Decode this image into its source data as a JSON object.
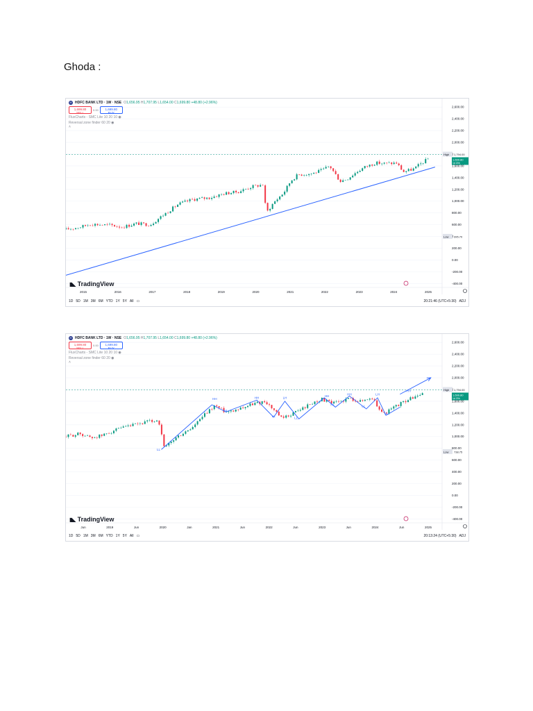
{
  "document": {
    "title": "Ghoda :"
  },
  "chart_data": [
    {
      "type": "candlestick",
      "symbol": "HDFC BANK LTD · 1W · NSE",
      "ohlc": {
        "open": "1,656.95",
        "high": "1,707.95",
        "low": "1,654.00",
        "close": "1,699.80",
        "change": "+48.80 (+2.96%)"
      },
      "trade": {
        "sell": "1,699.80",
        "sell_label": "SELL",
        "spread": "0.00",
        "buy": "1,699.80",
        "buy_label": "BUY"
      },
      "indicators": [
        "FluxCharts - SMC Lite 10 20 10",
        "Reversal zone finder 60 20"
      ],
      "y_axis": {
        "ticks": [
          -400,
          -200,
          0,
          200,
          400,
          600,
          800,
          1000,
          1200,
          1400,
          1600,
          1800,
          2000,
          2200,
          2400,
          2600
        ],
        "tick_labels": [
          "-400.00",
          "-200.00",
          "0.00",
          "200.00",
          "400.00",
          "600.00",
          "800.00",
          "1,000.00",
          "1,200.00",
          "1,400.00",
          "1,600.00",
          "1,800.00",
          "2,000.00",
          "2,200.00",
          "2,400.00",
          "2,600.00"
        ],
        "ylim": [
          -420,
          2650
        ]
      },
      "x_axis": {
        "labels": [
          "2015",
          "2016",
          "2017",
          "2018",
          "2019",
          "2020",
          "2021",
          "2022",
          "2023",
          "2024",
          "2025"
        ],
        "xlim": [
          2014.5,
          2025.2
        ]
      },
      "levels": {
        "high_label": "High",
        "high": "1,794.00",
        "low_label": "Low",
        "low": "395.70",
        "last": "1,699.80",
        "countdown": "1d 20h"
      },
      "series": [
        {
          "x": [
            2014.5,
            2014.9,
            2015.2,
            2015.5,
            2015.8,
            2016.1,
            2016.5,
            2016.9,
            2017.3,
            2017.7,
            2018.1,
            2018.6,
            2019.0,
            2019.4,
            2019.8,
            2020.1,
            2020.2,
            2020.4,
            2020.7,
            2020.9,
            2021.1,
            2021.5,
            2021.8,
            2022.0,
            2022.3,
            2022.5,
            2022.8,
            2023.0,
            2023.3,
            2023.6,
            2023.9,
            2024.1,
            2024.4,
            2024.6,
            2024.8
          ],
          "y": [
            520,
            560,
            610,
            600,
            590,
            560,
            620,
            600,
            780,
            950,
            1030,
            1060,
            1130,
            1160,
            1250,
            1280,
            800,
            970,
            1150,
            1350,
            1450,
            1470,
            1530,
            1600,
            1340,
            1380,
            1510,
            1580,
            1650,
            1640,
            1650,
            1500,
            1550,
            1640,
            1720
          ]
        }
      ],
      "trendline": {
        "from": [
          2014.5,
          -260
        ],
        "to": [
          2025.0,
          1580
        ]
      },
      "interval_buttons": [
        "1D",
        "5D",
        "1M",
        "3M",
        "6M",
        "YTD",
        "1Y",
        "5Y",
        "All"
      ],
      "time": "20:21:46 (UTC+5:30)",
      "adj": "ADJ",
      "brand": "TradingView"
    },
    {
      "type": "candlestick",
      "symbol": "HDFC BANK LTD · 1W · NSE",
      "ohlc": {
        "open": "1,656.95",
        "high": "1,707.95",
        "low": "1,654.00",
        "close": "1,699.80",
        "change": "+48.80 (+2.96%)"
      },
      "trade": {
        "sell": "1,699.80",
        "sell_label": "SELL",
        "spread": "0.00",
        "buy": "1,699.80",
        "buy_label": "BUY"
      },
      "indicators": [
        "FluxCharts - SMC Lite 10 20 10",
        "Reversal zone finder 60 20"
      ],
      "y_axis": {
        "ticks": [
          -400,
          -200,
          0,
          200,
          400,
          600,
          800,
          1000,
          1200,
          1400,
          1600,
          1800,
          2000,
          2200,
          2400,
          2600
        ],
        "tick_labels": [
          "-400.00",
          "-200.00",
          "0.00",
          "200.00",
          "400.00",
          "600.00",
          "800.00",
          "1,000.00",
          "1,200.00",
          "1,400.00",
          "1,600.00",
          "1,800.00",
          "2,000.00",
          "2,200.00",
          "2,400.00",
          "2,600.00"
        ],
        "ylim": [
          -420,
          2650
        ]
      },
      "x_axis": {
        "labels": [
          "Jun",
          "2019",
          "Jun",
          "2020",
          "Jan",
          "2021",
          "Jun",
          "2022",
          "Jun",
          "2023",
          "Jun",
          "2024",
          "Jun",
          "2025"
        ],
        "xlim": [
          2018.45,
          2025.15
        ]
      },
      "levels": {
        "high_label": "High",
        "high": "1,794.00",
        "low_label": "Low",
        "low": "738.75",
        "last": "1,699.80",
        "countdown": "1d 20h"
      },
      "series": [
        {
          "x": [
            2018.45,
            2018.7,
            2018.9,
            2019.1,
            2019.3,
            2019.6,
            2019.9,
            2020.1,
            2020.2,
            2020.4,
            2020.7,
            2020.9,
            2021.1,
            2021.3,
            2021.5,
            2021.8,
            2022.0,
            2022.3,
            2022.5,
            2022.8,
            2023.0,
            2023.2,
            2023.5,
            2023.7,
            2023.9,
            2024.1,
            2024.4,
            2024.6,
            2024.8
          ],
          "y": [
            1000,
            1050,
            980,
            1020,
            1100,
            1180,
            1250,
            1280,
            800,
            970,
            1150,
            1350,
            1530,
            1420,
            1470,
            1560,
            1600,
            1300,
            1400,
            1550,
            1640,
            1560,
            1650,
            1600,
            1660,
            1380,
            1560,
            1650,
            1720
          ]
        }
      ],
      "annotations": [
        {
          "x": 2020.1,
          "y": 760,
          "label": "LL"
        },
        {
          "x": 2021.1,
          "y": 1620,
          "label": "HH"
        },
        {
          "x": 2021.3,
          "y": 1420,
          "label": "HL"
        },
        {
          "x": 2021.85,
          "y": 1640,
          "label": "HH"
        },
        {
          "x": 2022.15,
          "y": 1330,
          "label": "LL"
        },
        {
          "x": 2022.35,
          "y": 1640,
          "label": "LH"
        },
        {
          "x": 2022.55,
          "y": 1300,
          "label": "LL"
        },
        {
          "x": 2023.1,
          "y": 1670,
          "label": "HH"
        },
        {
          "x": 2023.2,
          "y": 1520,
          "label": "HL"
        },
        {
          "x": 2023.5,
          "y": 1700,
          "label": "HH"
        },
        {
          "x": 2023.75,
          "y": 1500,
          "label": "LL"
        },
        {
          "x": 2024.0,
          "y": 1700,
          "label": "LH"
        },
        {
          "x": 2024.15,
          "y": 1380,
          "label": "LL"
        },
        {
          "x": 2024.55,
          "y": 1760,
          "label": "HH"
        }
      ],
      "wave_path": {
        "x": [
          2020.15,
          2021.05,
          2021.3,
          2021.85,
          2022.15,
          2022.35,
          2022.6,
          2023.05,
          2023.25,
          2023.5,
          2023.8,
          2024.0,
          2024.15,
          2024.4
        ],
        "y": [
          780,
          1540,
          1420,
          1620,
          1330,
          1600,
          1300,
          1660,
          1500,
          1690,
          1470,
          1660,
          1360,
          1500
        ]
      },
      "arrow": {
        "from": [
          2024.4,
          1720
        ],
        "to": [
          2024.95,
          2000
        ]
      },
      "interval_buttons": [
        "1D",
        "5D",
        "1M",
        "3M",
        "6M",
        "YTD",
        "1Y",
        "5Y",
        "All"
      ],
      "time": "20:13:24 (UTC+5:30)",
      "adj": "ADJ",
      "brand": "TradingView"
    }
  ],
  "colors": {
    "up": "#089981",
    "down": "#f23645",
    "trend": "#2962ff",
    "grid": "#f0f3fa",
    "high_line": "#089981",
    "annotation": "#2962ff"
  }
}
